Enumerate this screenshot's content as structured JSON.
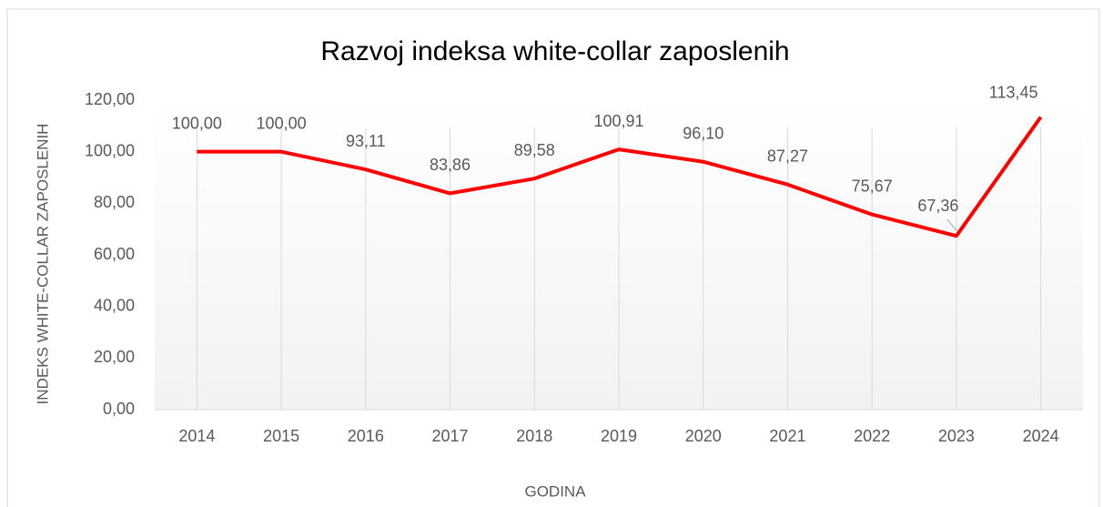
{
  "chart_data": {
    "type": "line",
    "title": "Razvoj indeksa white-collar zaposlenih",
    "x_label": "GODINA",
    "y_label": "INDEKS  WHITE-COLLAR ZAPOSLENIH",
    "categories": [
      "2014",
      "2015",
      "2016",
      "2017",
      "2018",
      "2019",
      "2020",
      "2021",
      "2022",
      "2023",
      "2024"
    ],
    "series": [
      {
        "name": "Indeks",
        "color": "#ff0000",
        "values": [
          100.0,
          100.0,
          93.11,
          83.86,
          89.58,
          100.91,
          96.1,
          87.27,
          75.67,
          67.36,
          113.45
        ],
        "value_labels": [
          "100,00",
          "100,00",
          "93,11",
          "83,86",
          "89,58",
          "100,91",
          "96,10",
          "87,27",
          "75,67",
          "67,36",
          "113,45"
        ]
      }
    ],
    "ylim": [
      0,
      120
    ],
    "yticks": [
      {
        "value": 0,
        "label": "0,00"
      },
      {
        "value": 20,
        "label": "20,00"
      },
      {
        "value": 40,
        "label": "40,00"
      },
      {
        "value": 60,
        "label": "60,00"
      },
      {
        "value": 80,
        "label": "80,00"
      },
      {
        "value": 100,
        "label": "100,00"
      },
      {
        "value": 120,
        "label": "120,00"
      }
    ],
    "grid": "vertical"
  }
}
